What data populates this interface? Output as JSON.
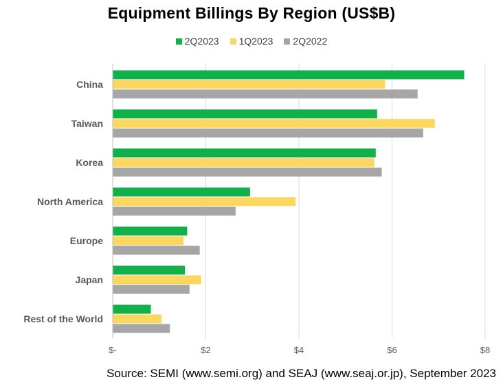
{
  "chart_data": {
    "type": "bar",
    "orientation": "horizontal",
    "title": "Equipment Billings By Region (US$B)",
    "categories": [
      "China",
      "Taiwan",
      "Korea",
      "North America",
      "Europe",
      "Japan",
      "Rest of the World"
    ],
    "series": [
      {
        "name": "2Q2023",
        "color": "#12b04b",
        "values": [
          7.55,
          5.68,
          5.65,
          2.95,
          1.6,
          1.55,
          0.82
        ]
      },
      {
        "name": "1Q2023",
        "color": "#fbd660",
        "values": [
          5.85,
          6.92,
          5.62,
          3.93,
          1.52,
          1.9,
          1.05
        ]
      },
      {
        "name": "2Q2022",
        "color": "#a6a6a6",
        "values": [
          6.55,
          6.67,
          5.78,
          2.64,
          1.87,
          1.65,
          1.23
        ]
      }
    ],
    "xlim": [
      0,
      8
    ],
    "xticks": [
      0,
      2,
      4,
      6,
      8
    ],
    "xtick_labels": [
      "$-",
      "$2",
      "$4",
      "$6",
      "$8"
    ],
    "grid": true,
    "legend_position": "top"
  },
  "source": "Source: SEMI (www.semi.org) and SEAJ (www.seaj.or.jp), September 2023"
}
